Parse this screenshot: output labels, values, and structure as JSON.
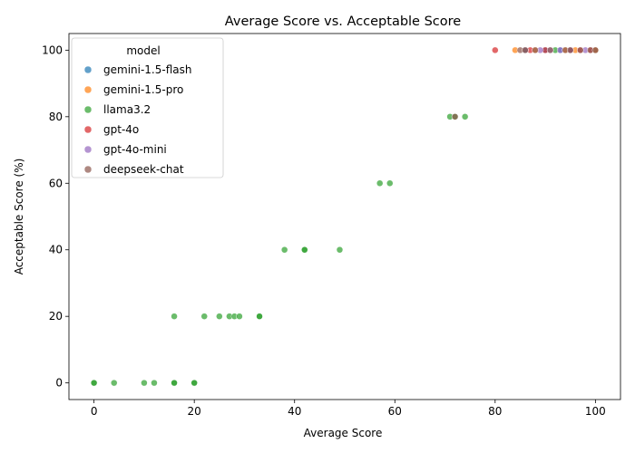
{
  "chart_data": {
    "type": "scatter",
    "title": "Average Score vs. Acceptable Score",
    "xlabel": "Average Score",
    "ylabel": "Acceptable Score (%)",
    "xlim": [
      -5,
      105
    ],
    "ylim": [
      -5,
      105
    ],
    "xticks": [
      0,
      20,
      40,
      60,
      80,
      100
    ],
    "yticks": [
      0,
      20,
      40,
      60,
      80,
      100
    ],
    "grid": false,
    "legend": {
      "title": "model",
      "placement": "upper-left"
    },
    "series": [
      {
        "name": "gemini-1.5-flash",
        "color": "#1f77b4",
        "points": [
          [
            86,
            100
          ],
          [
            90,
            100
          ],
          [
            93,
            100
          ],
          [
            95,
            100
          ],
          [
            100,
            100
          ]
        ]
      },
      {
        "name": "gemini-1.5-pro",
        "color": "#ff7f0e",
        "points": [
          [
            84,
            100
          ],
          [
            88,
            100
          ],
          [
            94,
            100
          ],
          [
            96,
            100
          ],
          [
            100,
            100
          ]
        ]
      },
      {
        "name": "llama3.2",
        "color": "#2ca02c",
        "points": [
          [
            0,
            0
          ],
          [
            0,
            0
          ],
          [
            4,
            0
          ],
          [
            10,
            0
          ],
          [
            12,
            0
          ],
          [
            16,
            0
          ],
          [
            16,
            0
          ],
          [
            20,
            0
          ],
          [
            20,
            0
          ],
          [
            16,
            20
          ],
          [
            22,
            20
          ],
          [
            25,
            20
          ],
          [
            27,
            20
          ],
          [
            28,
            20
          ],
          [
            29,
            20
          ],
          [
            33,
            20
          ],
          [
            33,
            20
          ],
          [
            38,
            40
          ],
          [
            42,
            40
          ],
          [
            42,
            40
          ],
          [
            49,
            40
          ],
          [
            57,
            60
          ],
          [
            59,
            60
          ],
          [
            71,
            80
          ],
          [
            72,
            80
          ],
          [
            74,
            80
          ],
          [
            86,
            100
          ],
          [
            92,
            100
          ]
        ]
      },
      {
        "name": "gpt-4o",
        "color": "#d62728",
        "points": [
          [
            80,
            100
          ],
          [
            87,
            100
          ],
          [
            90,
            100
          ],
          [
            95,
            100
          ],
          [
            97,
            100
          ],
          [
            99,
            100
          ]
        ]
      },
      {
        "name": "gpt-4o-mini",
        "color": "#9467bd",
        "points": [
          [
            86,
            100
          ],
          [
            89,
            100
          ],
          [
            91,
            100
          ],
          [
            93,
            100
          ],
          [
            95,
            100
          ],
          [
            98,
            100
          ]
        ]
      },
      {
        "name": "deepseek-chat",
        "color": "#8c564b",
        "points": [
          [
            72,
            80
          ],
          [
            85,
            100
          ],
          [
            86,
            100
          ],
          [
            88,
            100
          ],
          [
            91,
            100
          ],
          [
            94,
            100
          ],
          [
            95,
            100
          ],
          [
            97,
            100
          ],
          [
            99,
            100
          ],
          [
            100,
            100
          ]
        ]
      }
    ]
  }
}
